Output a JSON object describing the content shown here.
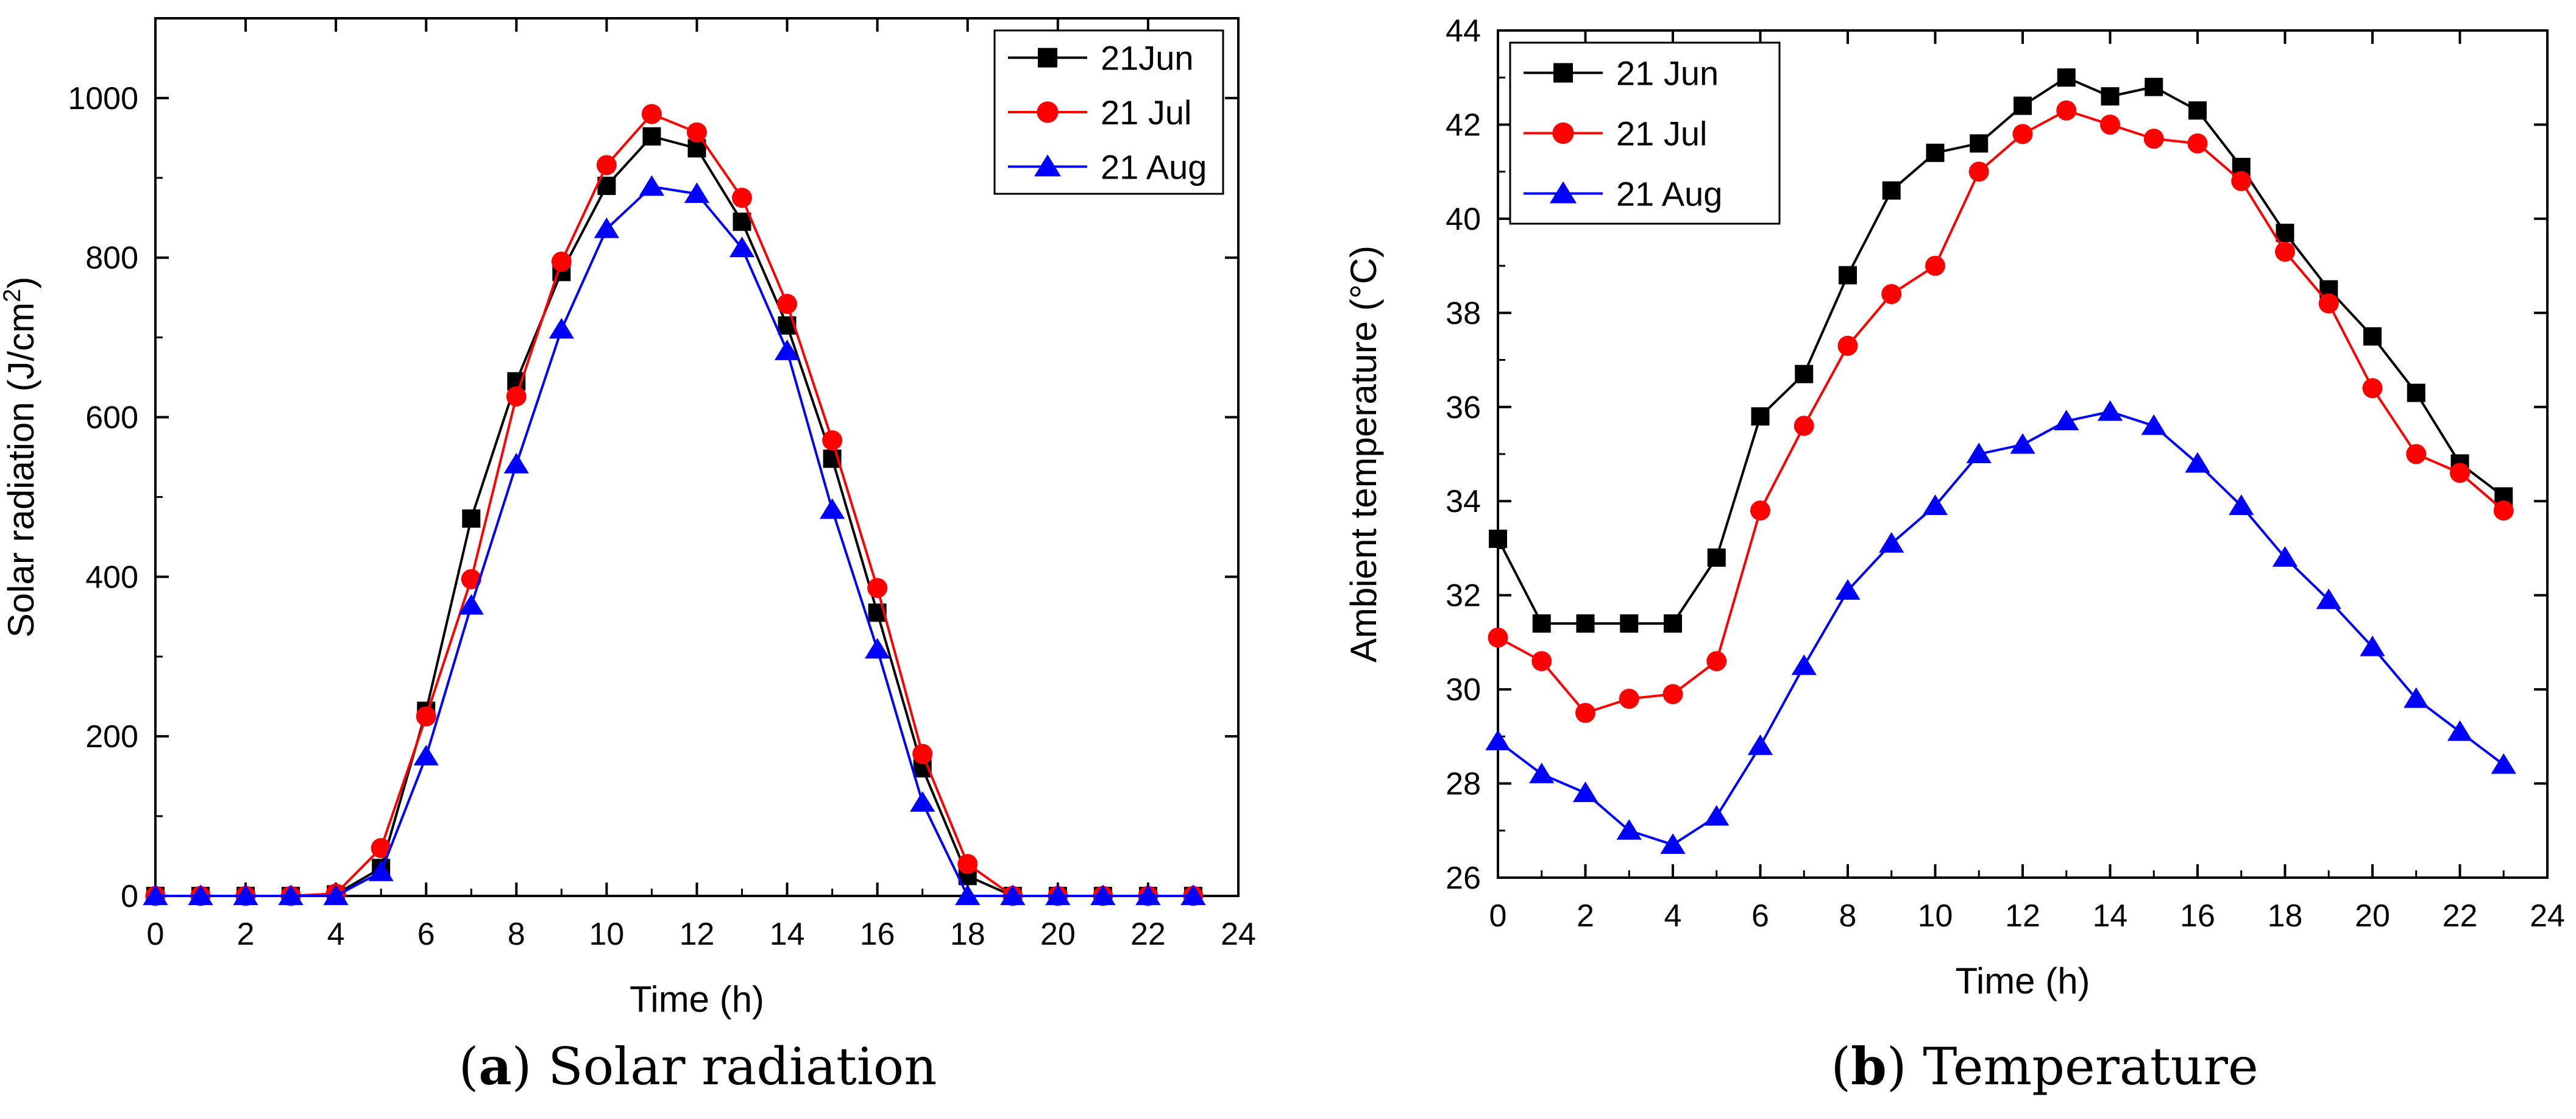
{
  "figure": {
    "panel_a_label": "a",
    "panel_a_caption": "Solar radiation",
    "panel_b_label": "b",
    "panel_b_caption": "Temperature"
  },
  "chart_data": [
    {
      "id": "a",
      "type": "line",
      "title": "Solar radiation",
      "xlabel": "Time (h)",
      "ylabel": "Solar radiation (J/cm²)",
      "ylabel_parts": [
        "Solar radiation (J/cm",
        "2",
        ")"
      ],
      "xlim": [
        0,
        24
      ],
      "ylim": [
        0,
        1100
      ],
      "xticks": [
        0,
        2,
        4,
        6,
        8,
        10,
        12,
        14,
        16,
        18,
        20,
        22,
        24
      ],
      "yticks": [
        0,
        200,
        400,
        600,
        800,
        1000
      ],
      "grid": false,
      "legend_position": "top-right",
      "x": [
        0,
        1,
        2,
        3,
        4,
        5,
        6,
        7,
        8,
        9,
        10,
        11,
        12,
        13,
        14,
        15,
        16,
        17,
        18,
        19,
        20,
        21,
        22,
        23
      ],
      "series": [
        {
          "name": "21Jun",
          "color": "#000000",
          "marker": "square",
          "values": [
            0,
            0,
            0,
            0,
            2,
            35,
            232,
            473,
            645,
            782,
            890,
            952,
            937,
            845,
            715,
            548,
            355,
            160,
            25,
            0,
            0,
            0,
            0,
            0
          ]
        },
        {
          "name": "21 Jul",
          "color": "#ff0000",
          "marker": "circle",
          "values": [
            0,
            0,
            0,
            0,
            3,
            60,
            225,
            397,
            626,
            795,
            916,
            980,
            957,
            875,
            742,
            571,
            386,
            178,
            40,
            0,
            0,
            0,
            0,
            0
          ]
        },
        {
          "name": "21 Aug",
          "color": "#0000ff",
          "marker": "triangle",
          "values": [
            0,
            0,
            0,
            0,
            0,
            30,
            175,
            364,
            541,
            710,
            836,
            889,
            880,
            812,
            683,
            484,
            309,
            117,
            0,
            0,
            0,
            0,
            0,
            0
          ]
        }
      ]
    },
    {
      "id": "b",
      "type": "line",
      "title": "Temperature",
      "xlabel": "Time (h)",
      "ylabel": "Ambient temperature (°C)",
      "xlim": [
        0,
        24
      ],
      "ylim": [
        26,
        44
      ],
      "xticks": [
        0,
        2,
        4,
        6,
        8,
        10,
        12,
        14,
        16,
        18,
        20,
        22,
        24
      ],
      "yticks": [
        26,
        28,
        30,
        32,
        34,
        36,
        38,
        40,
        42,
        44
      ],
      "grid": false,
      "legend_position": "top-left",
      "x": [
        0,
        1,
        2,
        3,
        4,
        5,
        6,
        7,
        8,
        9,
        10,
        11,
        12,
        13,
        14,
        15,
        16,
        17,
        18,
        19,
        20,
        21,
        22,
        23
      ],
      "series": [
        {
          "name": "21 Jun",
          "color": "#000000",
          "marker": "square",
          "values": [
            33.2,
            31.4,
            31.4,
            31.4,
            31.4,
            32.8,
            35.8,
            36.7,
            38.8,
            40.6,
            41.4,
            41.6,
            42.4,
            43.0,
            42.6,
            42.8,
            42.3,
            41.1,
            39.7,
            38.5,
            37.5,
            36.3,
            34.8,
            34.1
          ]
        },
        {
          "name": "21 Jul",
          "color": "#ff0000",
          "marker": "circle",
          "values": [
            31.1,
            30.6,
            29.5,
            29.8,
            29.9,
            30.6,
            33.8,
            35.6,
            37.3,
            38.4,
            39.0,
            41.0,
            41.8,
            42.3,
            42.0,
            41.7,
            41.6,
            40.8,
            39.3,
            38.2,
            36.4,
            35.0,
            34.6,
            33.8
          ]
        },
        {
          "name": "21 Aug",
          "color": "#0000ff",
          "marker": "triangle",
          "values": [
            28.9,
            28.2,
            27.8,
            27.0,
            26.7,
            27.3,
            28.8,
            30.5,
            32.1,
            33.1,
            33.9,
            35.0,
            35.2,
            35.7,
            35.9,
            35.6,
            34.8,
            33.9,
            32.8,
            31.9,
            30.9,
            29.8,
            29.1,
            28.4
          ]
        }
      ]
    }
  ]
}
